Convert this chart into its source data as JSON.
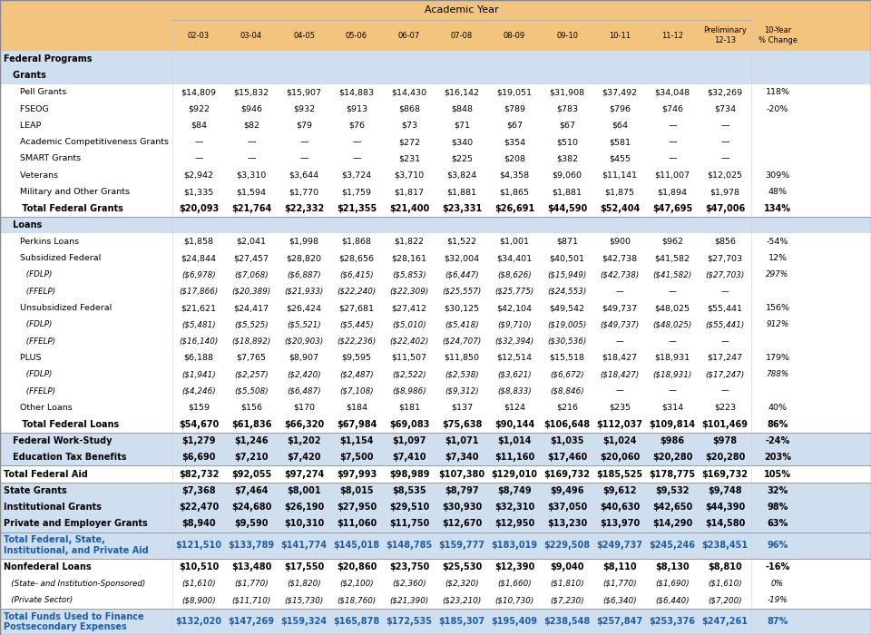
{
  "rows": [
    {
      "label": "Federal Programs",
      "indent": 0,
      "bold": true,
      "italic": false,
      "blue": false,
      "section_header": true,
      "divider_above": false,
      "divider_below": false,
      "bg": "blue",
      "data": [
        "",
        "",
        "",
        "",
        "",
        "",
        "",
        "",
        "",
        "",
        "",
        ""
      ]
    },
    {
      "label": "   Grants",
      "indent": 0,
      "bold": true,
      "italic": false,
      "blue": false,
      "section_header": true,
      "divider_above": false,
      "divider_below": false,
      "bg": "blue",
      "data": [
        "",
        "",
        "",
        "",
        "",
        "",
        "",
        "",
        "",
        "",
        "",
        ""
      ]
    },
    {
      "label": "      Pell Grants",
      "indent": 0,
      "bold": false,
      "italic": false,
      "blue": false,
      "divider_above": false,
      "divider_below": false,
      "bg": "white",
      "data": [
        "$14,809",
        "$15,832",
        "$15,907",
        "$14,883",
        "$14,430",
        "$16,142",
        "$19,051",
        "$31,908",
        "$37,492",
        "$34,048",
        "$32,269",
        "118%"
      ]
    },
    {
      "label": "      FSEOG",
      "indent": 0,
      "bold": false,
      "italic": false,
      "blue": false,
      "divider_above": false,
      "divider_below": false,
      "bg": "white",
      "data": [
        "$922",
        "$946",
        "$932",
        "$913",
        "$868",
        "$848",
        "$789",
        "$783",
        "$796",
        "$746",
        "$734",
        "-20%"
      ]
    },
    {
      "label": "      LEAP",
      "indent": 0,
      "bold": false,
      "italic": false,
      "blue": false,
      "divider_above": false,
      "divider_below": false,
      "bg": "white",
      "data": [
        "$84",
        "$82",
        "$79",
        "$76",
        "$73",
        "$71",
        "$67",
        "$67",
        "$64",
        "—",
        "—",
        ""
      ]
    },
    {
      "label": "      Academic Competitiveness Grants",
      "indent": 0,
      "bold": false,
      "italic": false,
      "blue": false,
      "divider_above": false,
      "divider_below": false,
      "bg": "white",
      "data": [
        "—",
        "—",
        "—",
        "—",
        "$272",
        "$340",
        "$354",
        "$510",
        "$581",
        "—",
        "—",
        ""
      ]
    },
    {
      "label": "      SMART Grants",
      "indent": 0,
      "bold": false,
      "italic": false,
      "blue": false,
      "divider_above": false,
      "divider_below": false,
      "bg": "white",
      "data": [
        "—",
        "—",
        "—",
        "—",
        "$231",
        "$225",
        "$208",
        "$382",
        "$455",
        "—",
        "—",
        ""
      ]
    },
    {
      "label": "      Veterans",
      "indent": 0,
      "bold": false,
      "italic": false,
      "blue": false,
      "divider_above": false,
      "divider_below": false,
      "bg": "white",
      "data": [
        "$2,942",
        "$3,310",
        "$3,644",
        "$3,724",
        "$3,710",
        "$3,824",
        "$4,358",
        "$9,060",
        "$11,141",
        "$11,007",
        "$12,025",
        "309%"
      ]
    },
    {
      "label": "      Military and Other Grants",
      "indent": 0,
      "bold": false,
      "italic": false,
      "blue": false,
      "divider_above": false,
      "divider_below": false,
      "bg": "white",
      "data": [
        "$1,335",
        "$1,594",
        "$1,770",
        "$1,759",
        "$1,817",
        "$1,881",
        "$1,865",
        "$1,881",
        "$1,875",
        "$1,894",
        "$1,978",
        "48%"
      ]
    },
    {
      "label": "      Total Federal Grants",
      "indent": 0,
      "bold": true,
      "italic": false,
      "blue": false,
      "divider_above": false,
      "divider_below": true,
      "bg": "white",
      "data": [
        "$20,093",
        "$21,764",
        "$22,332",
        "$21,355",
        "$21,400",
        "$23,331",
        "$26,691",
        "$44,590",
        "$52,404",
        "$47,695",
        "$47,006",
        "134%"
      ]
    },
    {
      "label": "   Loans",
      "indent": 0,
      "bold": true,
      "italic": false,
      "blue": false,
      "section_header": true,
      "divider_above": false,
      "divider_below": false,
      "bg": "blue",
      "data": [
        "",
        "",
        "",
        "",
        "",
        "",
        "",
        "",
        "",
        "",
        "",
        ""
      ]
    },
    {
      "label": "      Perkins Loans",
      "indent": 0,
      "bold": false,
      "italic": false,
      "blue": false,
      "divider_above": false,
      "divider_below": false,
      "bg": "white",
      "data": [
        "$1,858",
        "$2,041",
        "$1,998",
        "$1,868",
        "$1,822",
        "$1,522",
        "$1,001",
        "$871",
        "$900",
        "$962",
        "$856",
        "-54%"
      ]
    },
    {
      "label": "      Subsidized Federal",
      "indent": 0,
      "bold": false,
      "italic": false,
      "blue": false,
      "divider_above": false,
      "divider_below": false,
      "bg": "white",
      "data": [
        "$24,844",
        "$27,457",
        "$28,820",
        "$28,656",
        "$28,161",
        "$32,004",
        "$34,401",
        "$40,501",
        "$42,738",
        "$41,582",
        "$27,703",
        "12%"
      ]
    },
    {
      "label": "         (FDLP)",
      "indent": 0,
      "bold": false,
      "italic": true,
      "blue": false,
      "divider_above": false,
      "divider_below": false,
      "bg": "white",
      "data": [
        "($6,978)",
        "($7,068)",
        "($6,887)",
        "($6,415)",
        "($5,853)",
        "($6,447)",
        "($8,626)",
        "($15,949)",
        "($42,738)",
        "($41,582)",
        "($27,703)",
        "297%"
      ]
    },
    {
      "label": "         (FFELP)",
      "indent": 0,
      "bold": false,
      "italic": true,
      "blue": false,
      "divider_above": false,
      "divider_below": false,
      "bg": "white",
      "data": [
        "($17,866)",
        "($20,389)",
        "($21,933)",
        "($22,240)",
        "($22,309)",
        "($25,557)",
        "($25,775)",
        "($24,553)",
        "—",
        "—",
        "—",
        ""
      ]
    },
    {
      "label": "      Unsubsidized Federal",
      "indent": 0,
      "bold": false,
      "italic": false,
      "blue": false,
      "divider_above": false,
      "divider_below": false,
      "bg": "white",
      "data": [
        "$21,621",
        "$24,417",
        "$26,424",
        "$27,681",
        "$27,412",
        "$30,125",
        "$42,104",
        "$49,542",
        "$49,737",
        "$48,025",
        "$55,441",
        "156%"
      ]
    },
    {
      "label": "         (FDLP)",
      "indent": 0,
      "bold": false,
      "italic": true,
      "blue": false,
      "divider_above": false,
      "divider_below": false,
      "bg": "white",
      "data": [
        "($5,481)",
        "($5,525)",
        "($5,521)",
        "($5,445)",
        "($5,010)",
        "($5,418)",
        "($9,710)",
        "($19,005)",
        "($49,737)",
        "($48,025)",
        "($55,441)",
        "912%"
      ]
    },
    {
      "label": "         (FFELP)",
      "indent": 0,
      "bold": false,
      "italic": true,
      "blue": false,
      "divider_above": false,
      "divider_below": false,
      "bg": "white",
      "data": [
        "($16,140)",
        "($18,892)",
        "($20,903)",
        "($22,236)",
        "($22,402)",
        "($24,707)",
        "($32,394)",
        "($30,536)",
        "—",
        "—",
        "—",
        ""
      ]
    },
    {
      "label": "      PLUS",
      "indent": 0,
      "bold": false,
      "italic": false,
      "blue": false,
      "divider_above": false,
      "divider_below": false,
      "bg": "white",
      "data": [
        "$6,188",
        "$7,765",
        "$8,907",
        "$9,595",
        "$11,507",
        "$11,850",
        "$12,514",
        "$15,518",
        "$18,427",
        "$18,931",
        "$17,247",
        "179%"
      ]
    },
    {
      "label": "         (FDLP)",
      "indent": 0,
      "bold": false,
      "italic": true,
      "blue": false,
      "divider_above": false,
      "divider_below": false,
      "bg": "white",
      "data": [
        "($1,941)",
        "($2,257)",
        "($2,420)",
        "($2,487)",
        "($2,522)",
        "($2,538)",
        "($3,621)",
        "($6,672)",
        "($18,427)",
        "($18,931)",
        "($17,247)",
        "788%"
      ]
    },
    {
      "label": "         (FFELP)",
      "indent": 0,
      "bold": false,
      "italic": true,
      "blue": false,
      "divider_above": false,
      "divider_below": false,
      "bg": "white",
      "data": [
        "($4,246)",
        "($5,508)",
        "($6,487)",
        "($7,108)",
        "($8,986)",
        "($9,312)",
        "($8,833)",
        "($8,846)",
        "—",
        "—",
        "—",
        ""
      ]
    },
    {
      "label": "      Other Loans",
      "indent": 0,
      "bold": false,
      "italic": false,
      "blue": false,
      "divider_above": false,
      "divider_below": false,
      "bg": "white",
      "data": [
        "$159",
        "$156",
        "$170",
        "$184",
        "$181",
        "$137",
        "$124",
        "$216",
        "$235",
        "$314",
        "$223",
        "40%"
      ]
    },
    {
      "label": "      Total Federal Loans",
      "indent": 0,
      "bold": true,
      "italic": false,
      "blue": false,
      "divider_above": false,
      "divider_below": true,
      "bg": "white",
      "data": [
        "$54,670",
        "$61,836",
        "$66,320",
        "$67,984",
        "$69,083",
        "$75,638",
        "$90,144",
        "$106,648",
        "$112,037",
        "$109,814",
        "$101,469",
        "86%"
      ]
    },
    {
      "label": "   Federal Work-Study",
      "indent": 0,
      "bold": true,
      "italic": false,
      "blue": false,
      "divider_above": false,
      "divider_below": false,
      "bg": "blue",
      "data": [
        "$1,279",
        "$1,246",
        "$1,202",
        "$1,154",
        "$1,097",
        "$1,071",
        "$1,014",
        "$1,035",
        "$1,024",
        "$986",
        "$978",
        "-24%"
      ]
    },
    {
      "label": "   Education Tax Benefits",
      "indent": 0,
      "bold": true,
      "italic": false,
      "blue": false,
      "divider_above": false,
      "divider_below": false,
      "bg": "blue",
      "data": [
        "$6,690",
        "$7,210",
        "$7,420",
        "$7,500",
        "$7,410",
        "$7,340",
        "$11,160",
        "$17,460",
        "$20,060",
        "$20,280",
        "$20,280",
        "203%"
      ]
    },
    {
      "label": "Total Federal Aid",
      "indent": 0,
      "bold": true,
      "italic": false,
      "blue": false,
      "divider_above": true,
      "divider_below": true,
      "bg": "white_total",
      "data": [
        "$82,732",
        "$92,055",
        "$97,274",
        "$97,993",
        "$98,989",
        "$107,380",
        "$129,010",
        "$169,732",
        "$185,525",
        "$178,775",
        "$169,732",
        "105%"
      ]
    },
    {
      "label": "State Grants",
      "indent": 0,
      "bold": true,
      "italic": false,
      "blue": false,
      "divider_above": false,
      "divider_below": false,
      "bg": "blue",
      "data": [
        "$7,368",
        "$7,464",
        "$8,001",
        "$8,015",
        "$8,535",
        "$8,797",
        "$8,749",
        "$9,496",
        "$9,612",
        "$9,532",
        "$9,748",
        "32%"
      ]
    },
    {
      "label": "Institutional Grants",
      "indent": 0,
      "bold": true,
      "italic": false,
      "blue": false,
      "divider_above": false,
      "divider_below": false,
      "bg": "blue",
      "data": [
        "$22,470",
        "$24,680",
        "$26,190",
        "$27,950",
        "$29,510",
        "$30,930",
        "$32,310",
        "$37,050",
        "$40,630",
        "$42,650",
        "$44,390",
        "98%"
      ]
    },
    {
      "label": "Private and Employer Grants",
      "indent": 0,
      "bold": true,
      "italic": false,
      "blue": false,
      "divider_above": false,
      "divider_below": false,
      "bg": "blue",
      "data": [
        "$8,940",
        "$9,590",
        "$10,310",
        "$11,060",
        "$11,750",
        "$12,670",
        "$12,950",
        "$13,230",
        "$13,970",
        "$14,290",
        "$14,580",
        "63%"
      ]
    },
    {
      "label": "Total Federal, State,\nInstitutional, and Private Aid",
      "indent": 0,
      "bold": true,
      "italic": false,
      "blue": true,
      "divider_above": true,
      "divider_below": true,
      "bg": "blue_total",
      "data": [
        "$121,510",
        "$133,789",
        "$141,774",
        "$145,018",
        "$148,785",
        "$159,777",
        "$183,019",
        "$229,508",
        "$249,737",
        "$245,246",
        "$238,451",
        "96%"
      ]
    },
    {
      "label": "Nonfederal Loans",
      "indent": 0,
      "bold": true,
      "italic": false,
      "blue": false,
      "divider_above": false,
      "divider_below": false,
      "bg": "white",
      "data": [
        "$10,510",
        "$13,480",
        "$17,550",
        "$20,860",
        "$23,750",
        "$25,530",
        "$12,390",
        "$9,040",
        "$8,110",
        "$8,130",
        "$8,810",
        "-16%"
      ]
    },
    {
      "label": "   (State- and Institution-Sponsored)",
      "indent": 0,
      "bold": false,
      "italic": true,
      "blue": false,
      "divider_above": false,
      "divider_below": false,
      "bg": "white",
      "data": [
        "($1,610)",
        "($1,770)",
        "($1,820)",
        "($2,100)",
        "($2,360)",
        "($2,320)",
        "($1,660)",
        "($1,810)",
        "($1,770)",
        "($1,690)",
        "($1,610)",
        "0%"
      ]
    },
    {
      "label": "   (Private Sector)",
      "indent": 0,
      "bold": false,
      "italic": true,
      "blue": false,
      "divider_above": false,
      "divider_below": false,
      "bg": "white",
      "data": [
        "($8,900)",
        "($11,710)",
        "($15,730)",
        "($18,760)",
        "($21,390)",
        "($23,210)",
        "($10,730)",
        "($7,230)",
        "($6,340)",
        "($6,440)",
        "($7,200)",
        "-19%"
      ]
    },
    {
      "label": "Total Funds Used to Finance\nPostsecondary Expenses",
      "indent": 0,
      "bold": true,
      "italic": false,
      "blue": true,
      "divider_above": true,
      "divider_below": false,
      "bg": "blue_total",
      "data": [
        "$132,020",
        "$147,269",
        "$159,324",
        "$165,878",
        "$172,535",
        "$185,307",
        "$195,409",
        "$238,548",
        "$257,847",
        "$253,376",
        "$247,261",
        "87%"
      ]
    }
  ],
  "col_labels": [
    "02-03",
    "03-04",
    "04-05",
    "05-06",
    "06-07",
    "07-08",
    "08-09",
    "09-10",
    "10-11",
    "11-12",
    "Preliminary\n12-13",
    "10-Year\n% Change"
  ],
  "header_bg": "#F2C47E",
  "bg_blue": "#D0DFF0",
  "bg_white": "#FFFFFF",
  "bg_white_total": "#FFFFFF",
  "bg_blue_total": "#D0DFF0",
  "text_dark": "#000000",
  "text_blue": "#1A5FA8",
  "divider_color": "#999999",
  "outer_border": "#888888"
}
